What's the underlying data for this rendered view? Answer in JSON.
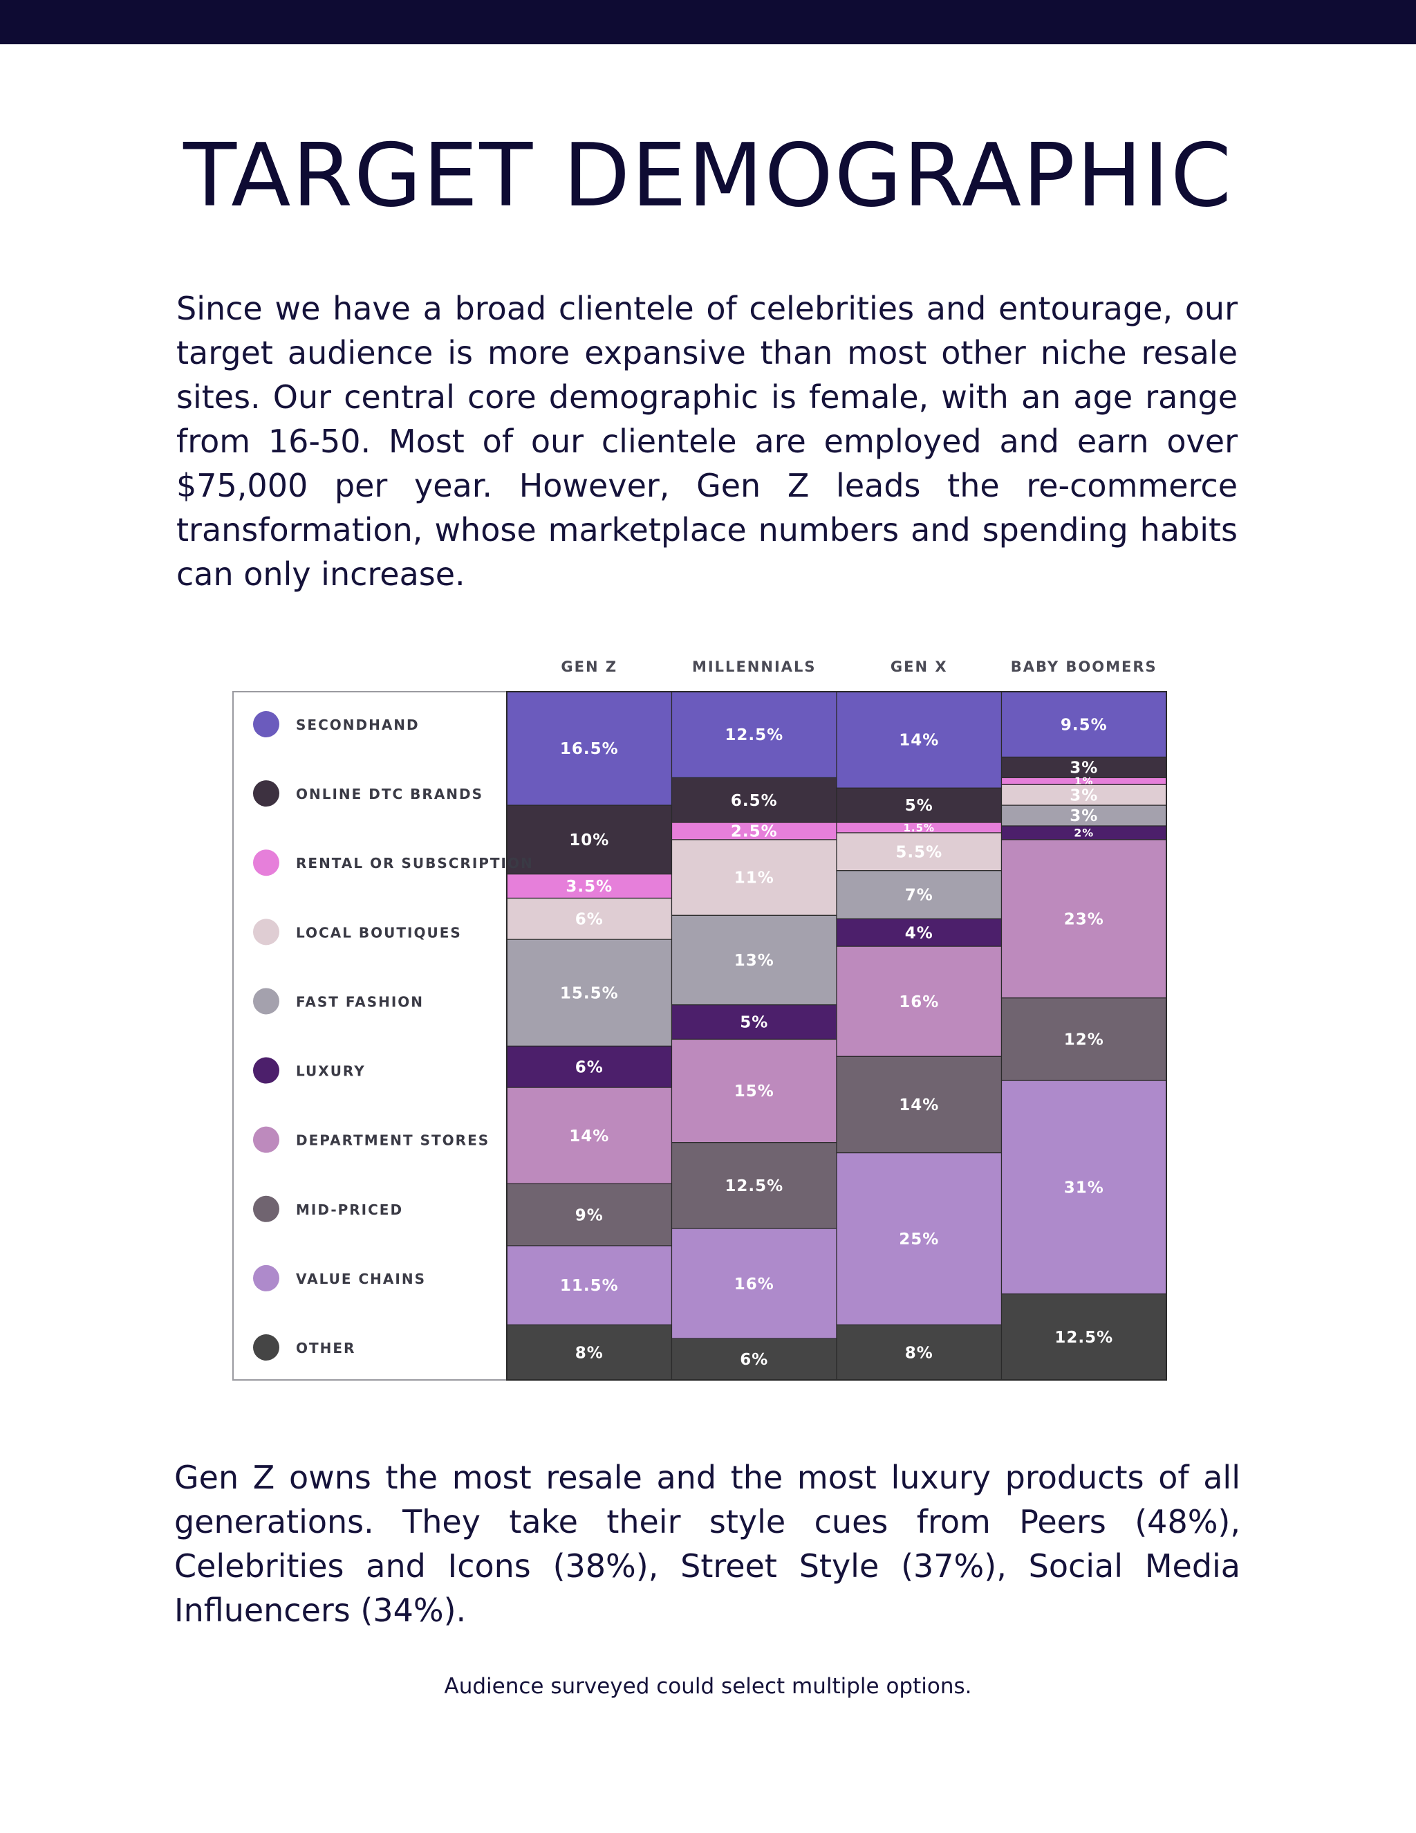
{
  "header": {
    "title": "TARGET DEMOGRAPHIC"
  },
  "intro_text": "Since we have a broad clientele of celebrities and entourage, our target audience is more expansive than most other niche resale sites. Our central core demographic is female, with an age range from 16-50. Most of our clientele are employed and earn over $75,000 per year. However, Gen Z leads the re-commerce transformation, whose marketplace numbers and spending habits can only increase.",
  "chart_data": {
    "type": "bar",
    "stacked": true,
    "legend_position": "left",
    "categories": [
      "GEN Z",
      "MILLENNIALS",
      "GEN X",
      "BABY BOOMERS"
    ],
    "series": [
      {
        "name": "SECONDHAND",
        "color": "#6b5bbd",
        "text_color": "#ffffff",
        "values": [
          16.5,
          12.5,
          14,
          9.5
        ],
        "labels": [
          "16.5%",
          "12.5%",
          "14%",
          "9.5%"
        ]
      },
      {
        "name": "ONLINE DTC BRANDS",
        "color": "#3d3140",
        "text_color": "#ffffff",
        "values": [
          10,
          6.5,
          5,
          3
        ],
        "labels": [
          "10%",
          "6.5%",
          "5%",
          "3%"
        ]
      },
      {
        "name": "RENTAL OR SUBSCRIPTION",
        "color": "#e67fda",
        "text_color": "#ffffff",
        "values": [
          3.5,
          2.5,
          1.5,
          1
        ],
        "labels": [
          "3.5%",
          "2.5%",
          "1.5%",
          "1%"
        ]
      },
      {
        "name": "LOCAL BOUTIQUES",
        "color": "#dfcdd3",
        "text_color": "#ffffff",
        "values": [
          6,
          11,
          5.5,
          3
        ],
        "labels": [
          "6%",
          "11%",
          "5.5%",
          "3%"
        ]
      },
      {
        "name": "FAST FASHION",
        "color": "#a4a1ad",
        "text_color": "#ffffff",
        "values": [
          15.5,
          13,
          7,
          3
        ],
        "labels": [
          "15.5%",
          "13%",
          "7%",
          "3%"
        ]
      },
      {
        "name": "LUXURY",
        "color": "#4c1f6b",
        "text_color": "#ffffff",
        "values": [
          6,
          5,
          4,
          2
        ],
        "labels": [
          "6%",
          "5%",
          "4%",
          "2%"
        ]
      },
      {
        "name": "DEPARTMENT STORES",
        "color": "#bd8abd",
        "text_color": "#ffffff",
        "values": [
          14,
          15,
          16,
          23
        ],
        "labels": [
          "14%",
          "15%",
          "16%",
          "23%"
        ]
      },
      {
        "name": "MID-PRICED",
        "color": "#706470",
        "text_color": "#ffffff",
        "values": [
          9,
          12.5,
          14,
          12
        ],
        "labels": [
          "9%",
          "12.5%",
          "14%",
          "12%"
        ]
      },
      {
        "name": "VALUE CHAINS",
        "color": "#ae8acb",
        "text_color": "#ffffff",
        "values": [
          11.5,
          16,
          25,
          31
        ],
        "labels": [
          "11.5%",
          "16%",
          "25%",
          "31%"
        ]
      },
      {
        "name": "OTHER",
        "color": "#454545",
        "text_color": "#ffffff",
        "values": [
          8,
          6,
          8,
          12.5
        ],
        "labels": [
          "8%",
          "6%",
          "8%",
          "12.5%"
        ]
      }
    ],
    "title": "",
    "xlabel": "",
    "ylabel": "",
    "ylim": [
      0,
      100
    ],
    "grid": false
  },
  "closing_text": "Gen Z owns the most resale and the most luxury products of all generations. They take their style cues from Peers (48%), Celebrities and Icons (38%), Street Style (37%), Social Media Influencers (34%).",
  "footnote": "Audience surveyed could select multiple options."
}
